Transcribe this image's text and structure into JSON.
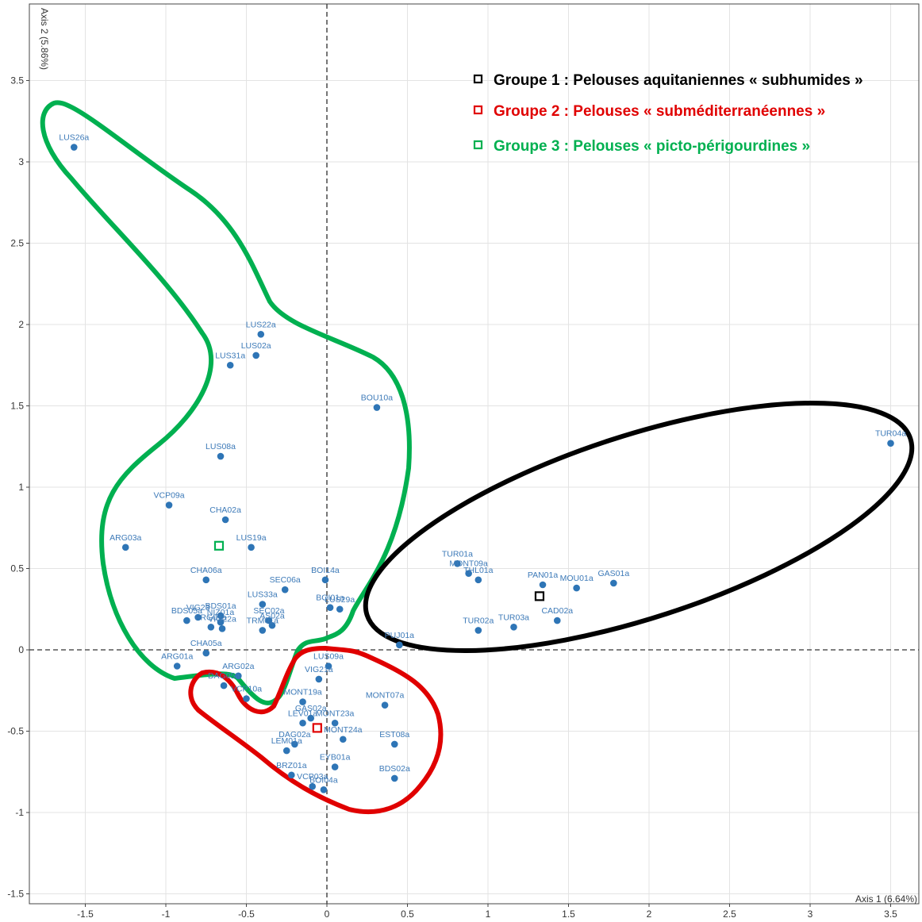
{
  "chart_data": {
    "type": "scatter",
    "xlabel": "Axis 1 (6.64%)",
    "ylabel": "Axis 2 (5.86%)",
    "xlim": [
      -1.7,
      3.6
    ],
    "ylim": [
      -1.6,
      3.95
    ],
    "x_ticks": [
      -1.5,
      -1,
      -0.5,
      0,
      0.5,
      1,
      1.5,
      2,
      2.5,
      3,
      3.5
    ],
    "x_tick_labels": [
      "-1.5",
      "-1",
      "-0.5",
      "0",
      "0.5",
      "1",
      "1.5",
      "2",
      "2.5",
      "3",
      "3.5"
    ],
    "y_ticks": [
      -1.5,
      -1,
      -0.5,
      0,
      0.5,
      1,
      1.5,
      2,
      2.5,
      3,
      3.5
    ],
    "y_tick_labels": [
      "-1.5",
      "-1",
      "-0.5",
      "0",
      "0.5",
      "1",
      "1.5",
      "2",
      "2.5",
      "3",
      "3.5"
    ],
    "grid": true,
    "legend_position": "top-right",
    "colors": {
      "point": "#2e75b6",
      "label": "#3d7ab8",
      "group1": "#000000",
      "group2": "#e00000",
      "group3": "#00b050"
    },
    "points": [
      {
        "label": "LUS26a",
        "x": -1.57,
        "y": 3.09
      },
      {
        "label": "LUS22a",
        "x": -0.41,
        "y": 1.94
      },
      {
        "label": "LUS31a",
        "x": -0.6,
        "y": 1.75
      },
      {
        "label": "LUS02a",
        "x": -0.44,
        "y": 1.81
      },
      {
        "label": "BOU10a",
        "x": 0.31,
        "y": 1.49
      },
      {
        "label": "LUS08a",
        "x": -0.66,
        "y": 1.19
      },
      {
        "label": "VCP09a",
        "x": -0.98,
        "y": 0.89
      },
      {
        "label": "CHA02a",
        "x": -0.63,
        "y": 0.8
      },
      {
        "label": "ARG03a",
        "x": -1.25,
        "y": 0.63
      },
      {
        "label": "LUS19a",
        "x": -0.47,
        "y": 0.63
      },
      {
        "label": "CHA06a",
        "x": -0.75,
        "y": 0.43
      },
      {
        "label": "SEC06a",
        "x": -0.26,
        "y": 0.37
      },
      {
        "label": "BOI14a",
        "x": -0.01,
        "y": 0.43
      },
      {
        "label": "LUS33a",
        "x": -0.4,
        "y": 0.28
      },
      {
        "label": "BOI01a",
        "x": 0.02,
        "y": 0.26
      },
      {
        "label": "VIG23",
        "x": -0.8,
        "y": 0.2
      },
      {
        "label": "BDS01a",
        "x": -0.66,
        "y": 0.21
      },
      {
        "label": "SEC02a",
        "x": -0.36,
        "y": 0.18
      },
      {
        "label": "LUS29a",
        "x": 0.08,
        "y": 0.25
      },
      {
        "label": "BDS05a",
        "x": -0.87,
        "y": 0.18
      },
      {
        "label": "NIZ01a",
        "x": -0.66,
        "y": 0.17
      },
      {
        "label": "FRG01a",
        "x": -0.72,
        "y": 0.14
      },
      {
        "label": "VIG22a",
        "x": -0.65,
        "y": 0.13
      },
      {
        "label": "AS02a",
        "x": -0.34,
        "y": 0.15
      },
      {
        "label": "TRM01a",
        "x": -0.4,
        "y": 0.12
      },
      {
        "label": "CHA05a",
        "x": -0.75,
        "y": -0.02
      },
      {
        "label": "ARG01a",
        "x": -0.93,
        "y": -0.1
      },
      {
        "label": "ARG02a",
        "x": -0.55,
        "y": -0.16
      },
      {
        "label": "DAG05a",
        "x": -0.64,
        "y": -0.22
      },
      {
        "label": "VCP10a",
        "x": -0.5,
        "y": -0.3
      },
      {
        "label": "LUS09a",
        "x": 0.01,
        "y": -0.1
      },
      {
        "label": "VIG21a",
        "x": -0.05,
        "y": -0.18
      },
      {
        "label": "MONT19a",
        "x": -0.15,
        "y": -0.32
      },
      {
        "label": "GAS02a",
        "x": -0.1,
        "y": -0.42
      },
      {
        "label": "LEV01a",
        "x": -0.15,
        "y": -0.45
      },
      {
        "label": "MONT23a",
        "x": 0.05,
        "y": -0.45
      },
      {
        "label": "MONT24a",
        "x": 0.1,
        "y": -0.55
      },
      {
        "label": "DAG02a",
        "x": -0.2,
        "y": -0.58
      },
      {
        "label": "LEM01a",
        "x": -0.25,
        "y": -0.62
      },
      {
        "label": "EYB01a",
        "x": 0.05,
        "y": -0.72
      },
      {
        "label": "BRZ01a",
        "x": -0.22,
        "y": -0.77
      },
      {
        "label": "VCP03a",
        "x": -0.09,
        "y": -0.84
      },
      {
        "label": "BOI04a",
        "x": -0.02,
        "y": -0.86
      },
      {
        "label": "MONT07a",
        "x": 0.36,
        "y": -0.34
      },
      {
        "label": "EST08a",
        "x": 0.42,
        "y": -0.58
      },
      {
        "label": "BDS02a",
        "x": 0.42,
        "y": -0.79
      },
      {
        "label": "PUJ01a",
        "x": 0.45,
        "y": 0.03
      },
      {
        "label": "TUR01a",
        "x": 0.81,
        "y": 0.53
      },
      {
        "label": "MONT09a",
        "x": 0.88,
        "y": 0.47
      },
      {
        "label": "THL01a",
        "x": 0.94,
        "y": 0.43
      },
      {
        "label": "PAN01a",
        "x": 1.34,
        "y": 0.4
      },
      {
        "label": "GAS01a",
        "x": 1.78,
        "y": 0.41
      },
      {
        "label": "MOU01a",
        "x": 1.55,
        "y": 0.38
      },
      {
        "label": "CAD02a",
        "x": 1.43,
        "y": 0.18
      },
      {
        "label": "TUR02a",
        "x": 0.94,
        "y": 0.12
      },
      {
        "label": "TUR03a",
        "x": 1.16,
        "y": 0.14
      },
      {
        "label": "TUR04a",
        "x": 3.5,
        "y": 1.27
      }
    ],
    "centroids": [
      {
        "group": "Groupe 1",
        "x": 1.32,
        "y": 0.33
      },
      {
        "group": "Groupe 2",
        "x": -0.06,
        "y": -0.48
      },
      {
        "group": "Groupe 3",
        "x": -0.67,
        "y": 0.64
      }
    ],
    "legend": [
      {
        "label": "Groupe 1 : Pelouses aquitaniennes « subhumides »",
        "color": "#000000"
      },
      {
        "label": "Groupe 2 : Pelouses « subméditerranéennes »",
        "color": "#e00000"
      },
      {
        "label": "Groupe 3 : Pelouses « picto-périgourdines »",
        "color": "#00b050"
      }
    ]
  }
}
